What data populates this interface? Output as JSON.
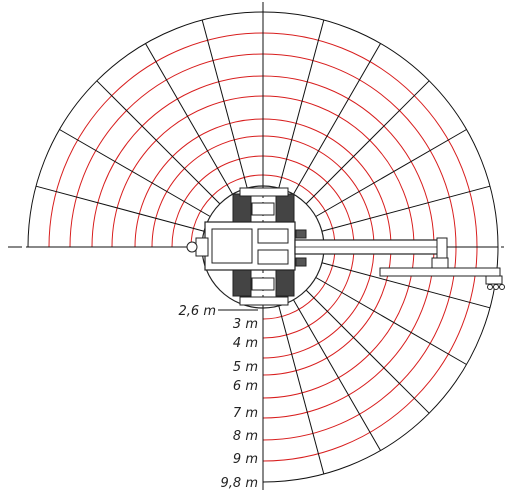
{
  "diagram": {
    "radius_labels": [
      "2,6 m",
      "3 m",
      "4 m",
      "5 m",
      "6 m",
      "7 m",
      "8 m",
      "9 m",
      "9,8 m"
    ]
  },
  "colors": {
    "ring": "#d81e1e",
    "spoke": "#111111",
    "machine": "#222222",
    "background": "#ffffff"
  }
}
